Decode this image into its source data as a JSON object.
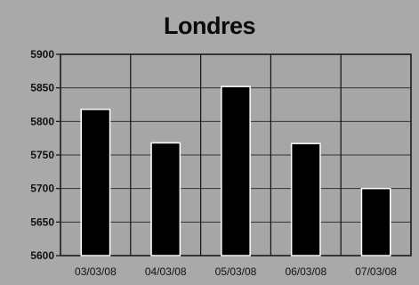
{
  "chart_data": {
    "type": "bar",
    "title": "Londres",
    "categories": [
      "03/03/08",
      "04/03/08",
      "05/03/08",
      "06/03/08",
      "07/03/08"
    ],
    "values": [
      5818,
      5768,
      5852,
      5767,
      5700
    ],
    "ylim": [
      5600,
      5900
    ],
    "yticks": [
      5600,
      5650,
      5700,
      5750,
      5800,
      5850,
      5900
    ],
    "grid": true,
    "bar_color": "#000000",
    "bar_edge_color": "#ffffff",
    "plot_background": "#a6a6a6"
  }
}
